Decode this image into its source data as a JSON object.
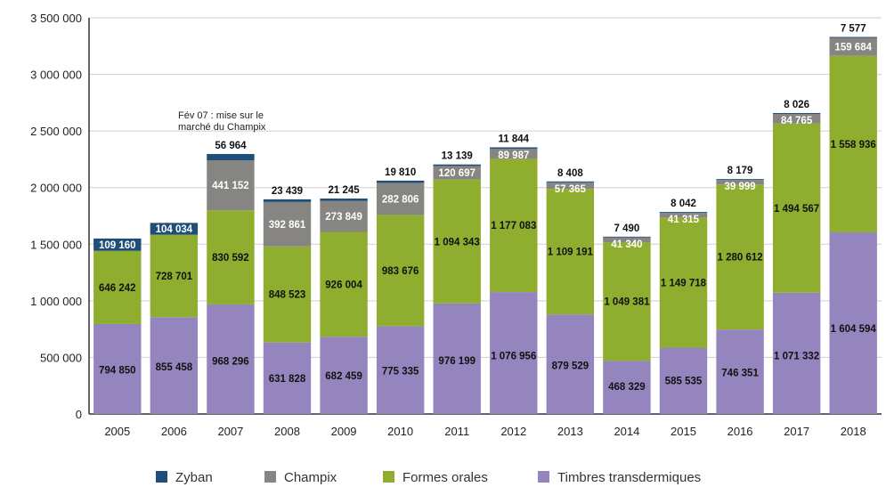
{
  "chart_data": {
    "type": "bar",
    "stacked": true,
    "categories": [
      "2005",
      "2006",
      "2007",
      "2008",
      "2009",
      "2010",
      "2011",
      "2012",
      "2013",
      "2014",
      "2015",
      "2016",
      "2017",
      "2018"
    ],
    "series": [
      {
        "name": "Timbres transdermiques",
        "color": "#9585be",
        "values": [
          794850,
          855458,
          968296,
          631828,
          682459,
          775335,
          976199,
          1076956,
          879529,
          468329,
          585535,
          746351,
          1071332,
          1604594
        ],
        "labels": [
          "794 850",
          "855 458",
          "968 296",
          "631 828",
          "682 459",
          "775 335",
          "976 199",
          "1 076 956",
          "879 529",
          "468 329",
          "585 535",
          "746 351",
          "1 071 332",
          "1 604 594"
        ]
      },
      {
        "name": "Formes orales",
        "color": "#8fad2e",
        "values": [
          646242,
          728701,
          830592,
          848523,
          926004,
          983676,
          1094343,
          1177083,
          1109191,
          1049381,
          1149718,
          1280612,
          1494567,
          1558936
        ],
        "labels": [
          "646 242",
          "728 701",
          "830 592",
          "848 523",
          "926 004",
          "983 676",
          "1 094 343",
          "1 177 083",
          "1 109 191",
          "1 049 381",
          "1 149 718",
          "1 280 612",
          "1 494 567",
          "1 558 936"
        ]
      },
      {
        "name": "Champix",
        "color": "#868582",
        "values": [
          null,
          null,
          441152,
          392861,
          273849,
          282806,
          120697,
          89987,
          57365,
          41340,
          41315,
          39999,
          84765,
          159684
        ],
        "labels": [
          "",
          "",
          "441 152",
          "392 861",
          "273 849",
          "282 806",
          "120 697",
          "89 987",
          "57 365",
          "41 340",
          "41 315",
          "39 999",
          "84 765",
          "159 684"
        ]
      },
      {
        "name": "Zyban",
        "color": "#1f4e79",
        "values": [
          109160,
          104034,
          56964,
          23439,
          21245,
          19810,
          13139,
          11844,
          8408,
          7490,
          8042,
          8179,
          8026,
          7577
        ],
        "labels": [
          "109 160",
          "104 034",
          "56 964",
          "23 439",
          "21 245",
          "19 810",
          "13 139",
          "11 844",
          "8 408",
          "7 490",
          "8 042",
          "8 179",
          "8 026",
          "7 577"
        ]
      }
    ],
    "ylim": [
      0,
      3500000
    ],
    "yticks": [
      0,
      500000,
      1000000,
      1500000,
      2000000,
      2500000,
      3000000,
      3500000
    ],
    "ytick_labels": [
      "0",
      "500 000",
      "1 000 000",
      "1 500 000",
      "2 000 000",
      "2 500 000",
      "3 000 000",
      "3 500 000"
    ],
    "grid": true,
    "legend_position": "bottom",
    "annotation": {
      "lines": [
        "Fév 07 : mise sur le",
        "marché du Champix"
      ]
    }
  }
}
